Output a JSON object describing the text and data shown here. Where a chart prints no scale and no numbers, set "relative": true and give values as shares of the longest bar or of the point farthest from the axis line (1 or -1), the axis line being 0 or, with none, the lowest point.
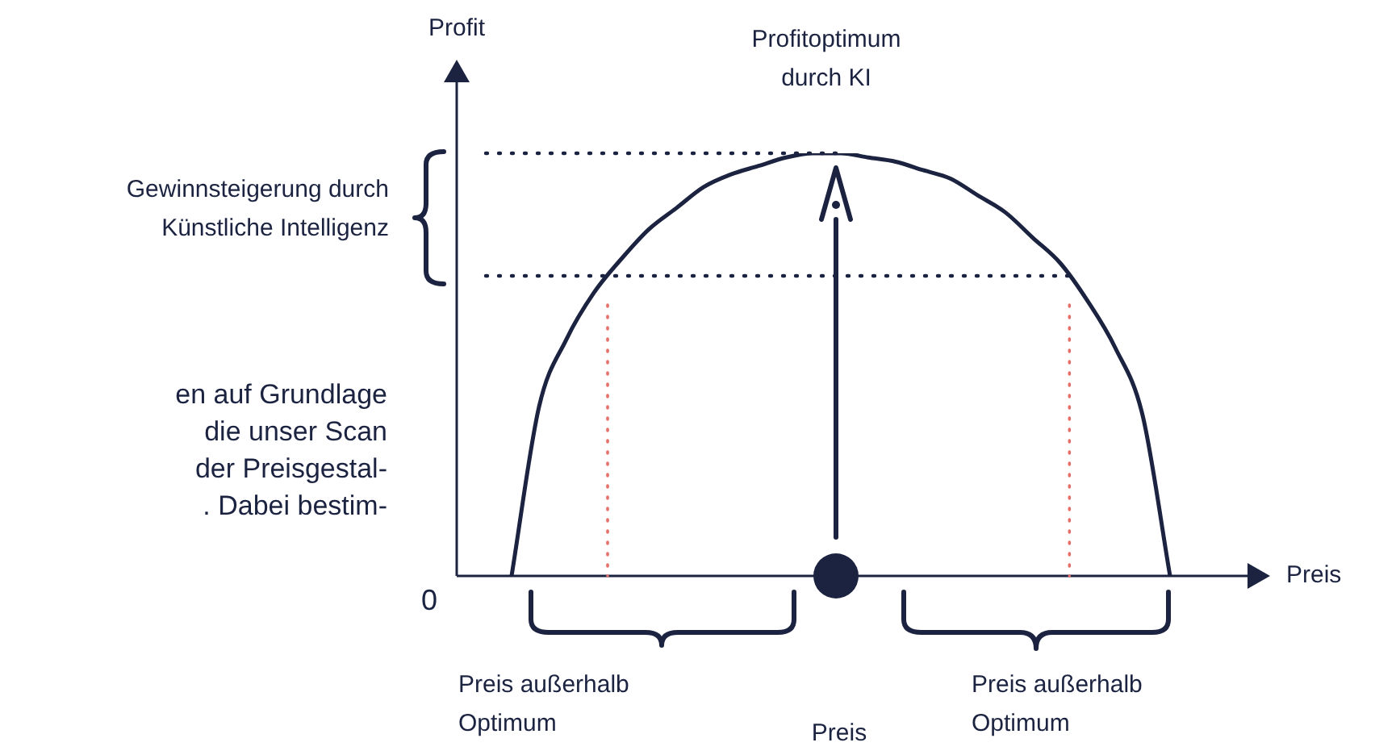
{
  "chart_data": {
    "type": "line",
    "xlabel": "Preis",
    "ylabel": "Profit",
    "relative": true,
    "legend": false,
    "marker": "none",
    "categories": [
      null,
      null,
      null,
      null,
      null,
      null,
      null,
      null,
      null,
      null,
      null,
      null,
      null,
      null,
      null,
      null,
      null,
      null,
      null,
      null,
      null,
      null,
      null,
      null,
      null,
      null,
      null,
      null,
      null
    ],
    "series": [
      {
        "color": "#1b2340",
        "values": [
          null,
          null,
          0,
          0.4,
          0.56,
          0.67,
          0.75,
          0.82,
          0.87,
          0.92,
          0.95,
          0.97,
          0.99,
          1,
          1,
          0.99,
          0.98,
          0.96,
          0.94,
          0.9,
          0.86,
          0.8,
          0.74,
          0.65,
          0.54,
          0.38,
          0,
          null,
          null
        ]
      }
    ],
    "ref_lines": [
      {
        "axis": "y",
        "value": 1,
        "color": "#1b2340",
        "line_style": "dotted"
      },
      {
        "axis": "y",
        "value": 0.71,
        "color": "#1b2340",
        "line_style": "dotted"
      }
    ],
    "annotations": [
      "Gewinnsteigerung durch\nKünstliche Intelligenz",
      "Profitoptimum\ndurch KI",
      "0",
      "Preis außerhalb\nOptimum",
      "Preis",
      "Preis außerhalb\nOptimum",
      "en auf Grundlage\ndie unser Scan\nder Preisgestal-\n. Dabei bestim-"
    ]
  }
}
